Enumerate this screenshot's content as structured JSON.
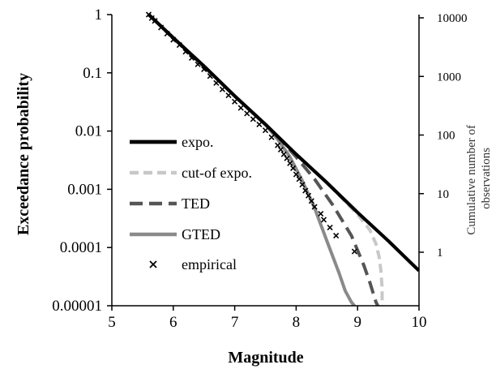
{
  "chart_data": {
    "type": "line",
    "title": "",
    "xlabel": "Magnitude",
    "ylabel": "Exceedance probability",
    "ylabel_right": "Cumulative number of observations",
    "xlim": [
      5,
      10
    ],
    "ylim": [
      1e-05,
      1
    ],
    "yscale": "log",
    "ylim_right": [
      1,
      10000
    ],
    "yscale_right": "log",
    "grid": false,
    "legend_position": "left-center",
    "x_ticks": [
      "5",
      "6",
      "7",
      "8",
      "9",
      "10"
    ],
    "y_ticks": [
      "1",
      "0.1",
      "0.01",
      "0.001",
      "0.0001",
      "0.00001"
    ],
    "y_ticks_right": [
      "10000",
      "1000",
      "100",
      "10",
      "1"
    ],
    "series": [
      {
        "name": "expo.",
        "style": "solid",
        "color": "#000000",
        "x": [
          5.6,
          6.0,
          6.5,
          7.0,
          7.5,
          8.0,
          8.5,
          9.0,
          9.5,
          10.0
        ],
        "y": [
          1.0,
          0.4,
          0.13,
          0.04,
          0.013,
          0.004,
          0.0013,
          0.0004,
          0.00013,
          4e-05
        ]
      },
      {
        "name": "cut-of expo.",
        "style": "dashed",
        "color": "#c8c8c8",
        "x": [
          5.6,
          6.0,
          6.5,
          7.0,
          7.5,
          8.0,
          8.5,
          9.0,
          9.2,
          9.3,
          9.35,
          9.38,
          9.4,
          9.4
        ],
        "y": [
          1.0,
          0.4,
          0.13,
          0.04,
          0.013,
          0.004,
          0.0013,
          0.00037,
          0.0002,
          0.000115,
          7e-05,
          4e-05,
          2e-05,
          1e-05
        ]
      },
      {
        "name": "TED",
        "style": "dashed",
        "color": "#555555",
        "x": [
          5.6,
          6.0,
          6.5,
          7.0,
          7.5,
          7.8,
          8.0,
          8.3,
          8.6,
          8.9,
          9.1,
          9.2,
          9.3,
          9.33
        ],
        "y": [
          1.0,
          0.4,
          0.13,
          0.04,
          0.013,
          0.0062,
          0.0036,
          0.0015,
          0.00053,
          0.00016,
          5e-05,
          2.5e-05,
          1.15e-05,
          1e-05
        ]
      },
      {
        "name": "GTED",
        "style": "solid",
        "color": "#8a8a8a",
        "x": [
          5.6,
          6.0,
          6.5,
          7.0,
          7.5,
          7.7,
          7.9,
          8.1,
          8.3,
          8.5,
          8.7,
          8.8,
          8.9,
          8.95
        ],
        "y": [
          1.0,
          0.4,
          0.13,
          0.04,
          0.013,
          0.0072,
          0.0036,
          0.0014,
          0.00048,
          0.00013,
          3.6e-05,
          1.8e-05,
          1.15e-05,
          1e-05
        ]
      },
      {
        "name": "empirical",
        "style": "marker",
        "marker": "x",
        "color": "#000000",
        "x": [
          5.6,
          5.65,
          5.7,
          5.8,
          5.9,
          6.0,
          6.1,
          6.2,
          6.3,
          6.4,
          6.5,
          6.6,
          6.7,
          6.8,
          6.9,
          7.0,
          7.1,
          7.2,
          7.3,
          7.4,
          7.5,
          7.6,
          7.7,
          7.75,
          7.8,
          7.85,
          7.9,
          7.95,
          8.0,
          8.05,
          8.1,
          8.15,
          8.2,
          8.25,
          8.3,
          8.4,
          8.45,
          8.55,
          8.65,
          8.95
        ],
        "y": [
          1.0,
          0.87,
          0.78,
          0.6,
          0.47,
          0.37,
          0.3,
          0.23,
          0.18,
          0.14,
          0.115,
          0.088,
          0.067,
          0.052,
          0.041,
          0.032,
          0.025,
          0.02,
          0.016,
          0.013,
          0.0103,
          0.0078,
          0.0057,
          0.0048,
          0.004,
          0.0034,
          0.0028,
          0.0023,
          0.0018,
          0.0015,
          0.0012,
          0.00095,
          0.00078,
          0.00063,
          0.0005,
          0.00038,
          0.0003,
          0.00022,
          0.00016,
          8.55e-05
        ]
      }
    ]
  }
}
